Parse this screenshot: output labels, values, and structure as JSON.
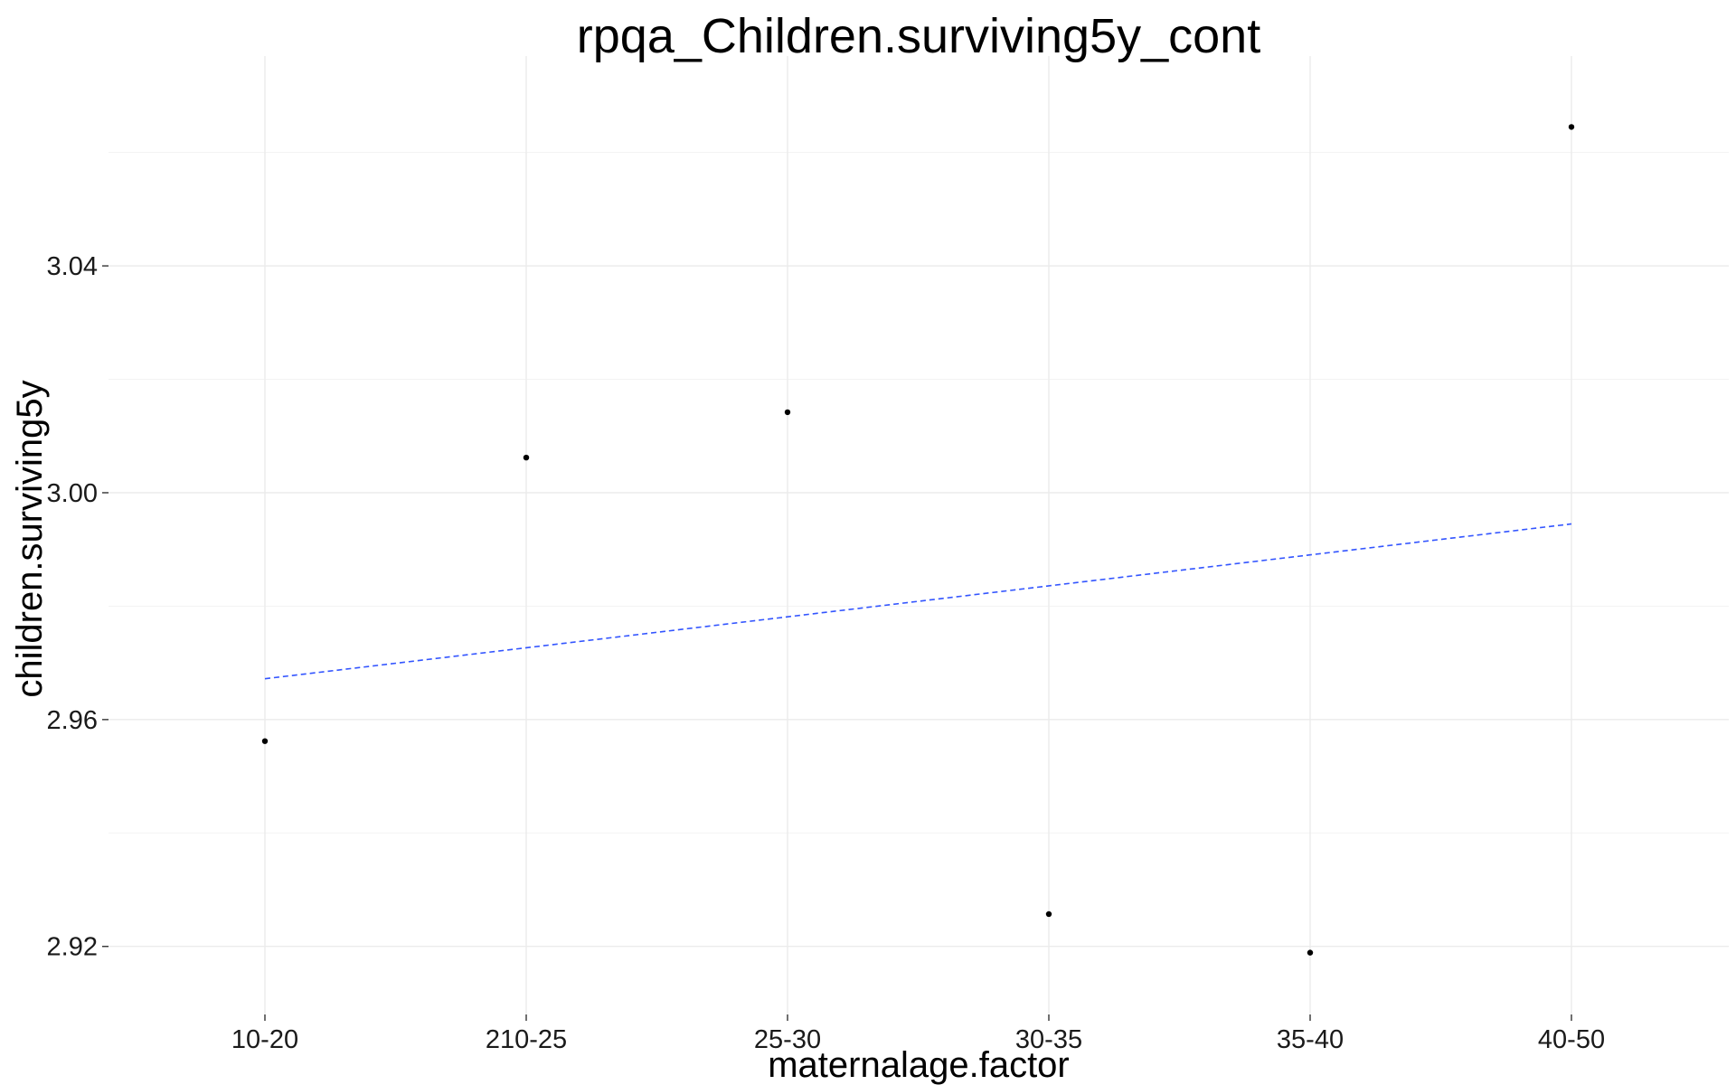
{
  "chart_data": {
    "type": "scatter",
    "title": "rpqa_Children.surviving5y_cont",
    "xlabel": "maternalage.factor",
    "ylabel": "children.surviving5y",
    "categories": [
      "10-20",
      "210-25",
      "25-30",
      "30-35",
      "35-40",
      "40-50"
    ],
    "values": [
      2.9562,
      3.0062,
      3.0142,
      2.9257,
      2.9189,
      3.0645
    ],
    "ylim": [
      2.908,
      3.077
    ],
    "yticks": [
      2.92,
      2.96,
      3.0,
      3.04
    ],
    "ytick_labels": [
      "2.92",
      "2.96",
      "3.00",
      "3.04"
    ],
    "trend_line": {
      "style": "dashed",
      "color": "#3355ff",
      "start": 2.9672,
      "end": 2.9945
    },
    "point_color": "#000000",
    "grid": true,
    "legend": "none"
  }
}
